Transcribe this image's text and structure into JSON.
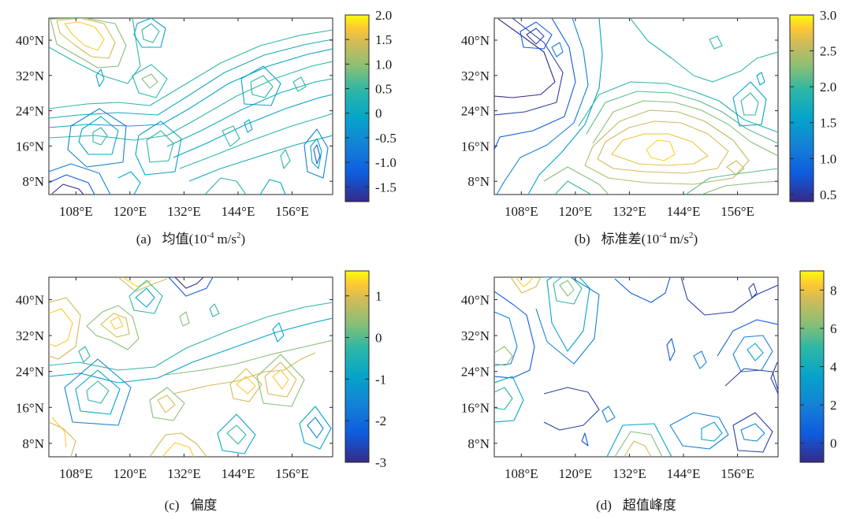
{
  "chart_data": [
    {
      "type": "heatmap",
      "style": "contour",
      "caption_label": "(a)",
      "caption_text": "均值",
      "unit_base": "10",
      "unit_exp": "-4",
      "unit_tail": "m/s",
      "unit_sq": "2",
      "unit_close": ")",
      "xticks": [
        "108°E",
        "120°E",
        "132°E",
        "144°E",
        "156°E"
      ],
      "yticks": [
        "8°N",
        "16°N",
        "24°N",
        "32°N",
        "40°N"
      ],
      "xlim": [
        102,
        165
      ],
      "ylim": [
        5,
        45
      ],
      "colorbar": {
        "ticks": [
          "2.0",
          "1.5",
          "1.0",
          "0.5",
          "0",
          "-0.5",
          "-1.0",
          "-1.5"
        ],
        "tick_values": [
          2.0,
          1.5,
          1.0,
          0.5,
          0,
          -0.5,
          -1.0,
          -1.5
        ],
        "range": [
          -1.8,
          2.0
        ],
        "colormap": "parula"
      }
    },
    {
      "type": "heatmap",
      "style": "contour",
      "caption_label": "(b)",
      "caption_text": "标准差",
      "unit_base": "10",
      "unit_exp": "-4",
      "unit_tail": "m/s",
      "unit_sq": "2",
      "unit_close": ")",
      "xticks": [
        "108°E",
        "120°E",
        "132°E",
        "144°E",
        "156°E"
      ],
      "yticks": [
        "8°N",
        "16°N",
        "24°N",
        "32°N",
        "40°N"
      ],
      "xlim": [
        102,
        165
      ],
      "ylim": [
        5,
        45
      ],
      "colorbar": {
        "ticks": [
          "3.0",
          "2.5",
          "2.0",
          "1.5",
          "1.0",
          "0.5"
        ],
        "tick_values": [
          3.0,
          2.5,
          2.0,
          1.5,
          1.0,
          0.5
        ],
        "range": [
          0.4,
          3.0
        ],
        "colormap": "parula"
      }
    },
    {
      "type": "heatmap",
      "style": "contour",
      "caption_label": "(c)",
      "caption_text": "偏度",
      "xticks": [
        "108°E",
        "120°E",
        "132°E",
        "144°E",
        "156°E"
      ],
      "yticks": [
        "8°N",
        "16°N",
        "24°N",
        "32°N",
        "40°N"
      ],
      "xlim": [
        102,
        165
      ],
      "ylim": [
        5,
        45
      ],
      "colorbar": {
        "ticks": [
          "1",
          "0",
          "-1",
          "-2",
          "-3"
        ],
        "tick_values": [
          1,
          0,
          -1,
          -2,
          -3
        ],
        "range": [
          -3.0,
          1.6
        ],
        "colormap": "parula"
      }
    },
    {
      "type": "heatmap",
      "style": "contour",
      "caption_label": "(d)",
      "caption_text": "超值峰度",
      "xticks": [
        "108°E",
        "120°E",
        "132°E",
        "144°E",
        "156°E"
      ],
      "yticks": [
        "8°N",
        "16°N",
        "24°N",
        "32°N",
        "40°N"
      ],
      "xlim": [
        102,
        165
      ],
      "ylim": [
        5,
        45
      ],
      "colorbar": {
        "ticks": [
          "8",
          "6",
          "4",
          "2",
          "0"
        ],
        "tick_values": [
          8,
          6,
          4,
          2,
          0
        ],
        "range": [
          -1.0,
          9.0
        ],
        "colormap": "parula"
      }
    }
  ]
}
